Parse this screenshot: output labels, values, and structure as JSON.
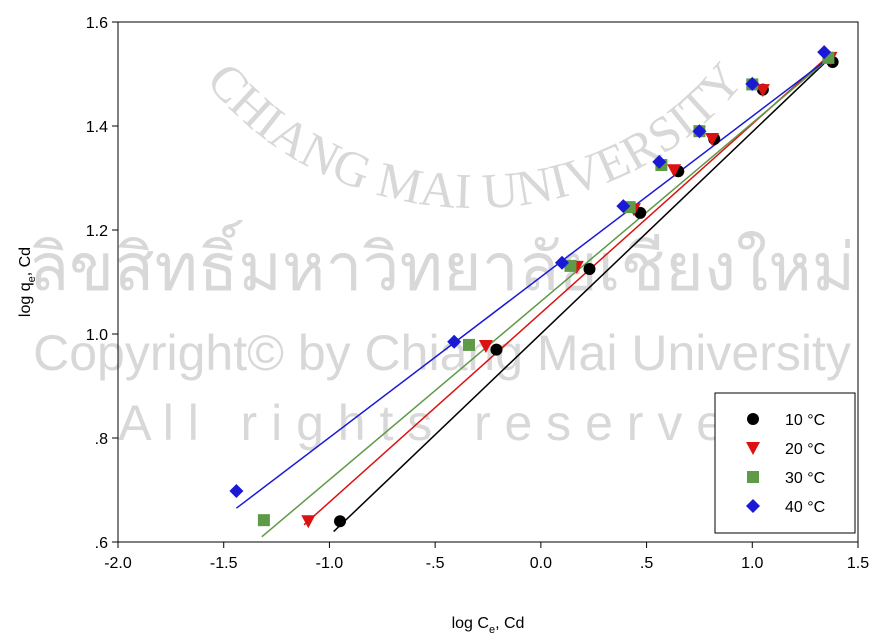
{
  "chart_data": {
    "type": "scatter",
    "xlabel": {
      "text": "log C",
      "sub": "e",
      "rest": ", Cd"
    },
    "ylabel": {
      "text": "log q",
      "sub": "e",
      "rest": ", Cd"
    },
    "xlim": [
      -2.0,
      1.5
    ],
    "xticks": [
      {
        "value": -2.0,
        "label": "-2.0"
      },
      -1.5,
      {
        "value": -1.0,
        "label": "-1.0"
      },
      {
        "value": -0.5,
        "label": "-.5"
      },
      {
        "value": 0.0,
        "label": "0.0"
      },
      {
        "value": 0.5,
        "label": ".5"
      },
      {
        "value": 1.0,
        "label": "1.0"
      },
      1.5
    ],
    "ylim": [
      0.6,
      1.6
    ],
    "yticks": [
      {
        "value": 0.6,
        "label": ".6"
      },
      {
        "value": 0.8,
        "label": ".8"
      },
      {
        "value": 1.0,
        "label": "1.0"
      },
      1.2,
      1.4,
      1.6
    ],
    "legend": "lower right",
    "series": [
      {
        "name": "10 °C",
        "color": "#000000",
        "marker": "circle",
        "x": [
          -0.95,
          -0.21,
          0.23,
          0.47,
          0.65,
          0.82,
          1.05,
          1.38
        ],
        "values": [
          0.64,
          0.97,
          1.125,
          1.233,
          1.313,
          1.375,
          1.47,
          1.523
        ],
        "fit": {
          "x": [
            -0.98,
            1.38
          ],
          "y": [
            0.62,
            1.536
          ]
        }
      },
      {
        "name": "20 °C",
        "color": "#dd1111",
        "marker": "triangle",
        "x": [
          -1.1,
          -0.26,
          0.17,
          0.44,
          0.63,
          0.81,
          1.05,
          1.37
        ],
        "values": [
          0.64,
          0.977,
          1.129,
          1.24,
          1.315,
          1.375,
          1.469,
          1.531
        ],
        "fit": {
          "x": [
            -1.12,
            1.38
          ],
          "y": [
            0.633,
            1.542
          ]
        }
      },
      {
        "name": "30 °C",
        "color": "#5e9a48",
        "marker": "square",
        "x": [
          -1.31,
          -0.34,
          0.14,
          0.42,
          0.57,
          0.75,
          1.0,
          1.36
        ],
        "values": [
          0.642,
          0.979,
          1.131,
          1.244,
          1.325,
          1.39,
          1.48,
          1.531
        ],
        "fit": {
          "x": [
            -1.32,
            1.38
          ],
          "y": [
            0.61,
            1.536
          ]
        }
      },
      {
        "name": "40 °C",
        "color": "#1a1ad6",
        "marker": "diamond",
        "x": [
          -1.44,
          -0.41,
          0.1,
          0.39,
          0.56,
          0.75,
          1.0,
          1.34
        ],
        "values": [
          0.698,
          0.985,
          1.137,
          1.246,
          1.331,
          1.39,
          1.481,
          1.542
        ],
        "fit": {
          "x": [
            -1.44,
            1.38
          ],
          "y": [
            0.665,
            1.536
          ]
        }
      }
    ]
  },
  "watermark": {
    "arc": "CHIANG MAI UNIVERSITY",
    "thai": "ลิขสิทธิ์มหาวิทยาลัยเชียงใหม่",
    "copyright": "Copyright© by Chiang Mai University",
    "rights": "A l l   r i g h t s   r e s e r v e d"
  }
}
